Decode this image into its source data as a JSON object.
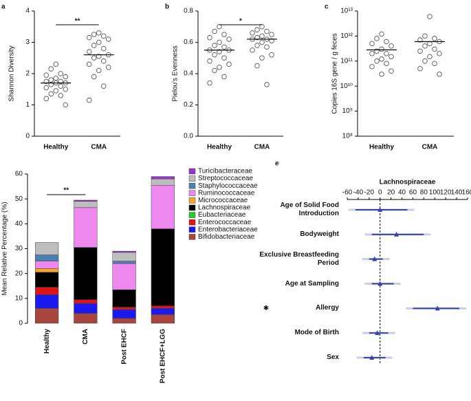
{
  "chart_data": [
    {
      "type": "strip",
      "panel": "a",
      "ylabel": "Shannon Diversity",
      "categories": [
        "Healthy",
        "CMA"
      ],
      "series": [
        {
          "values": [
            2.3,
            2.15,
            2.0,
            1.95,
            1.9,
            1.85,
            1.8,
            1.75,
            1.75,
            1.7,
            1.7,
            1.65,
            1.6,
            1.55,
            1.5,
            1.45,
            1.35,
            1.3,
            1.2,
            1.0
          ]
        },
        {
          "values": [
            3.3,
            3.25,
            3.2,
            3.15,
            3.1,
            3.0,
            2.9,
            2.8,
            2.7,
            2.6,
            2.55,
            2.5,
            2.4,
            2.3,
            2.2,
            2.1,
            1.9,
            1.6,
            1.15
          ]
        }
      ],
      "medians": [
        1.7,
        2.6
      ],
      "annotation": "**",
      "ylim": [
        0,
        4
      ],
      "yticks": [
        0,
        1,
        2,
        3,
        4
      ]
    },
    {
      "type": "strip",
      "panel": "b",
      "ylabel": "Pielou's Evenness",
      "categories": [
        "Healthy",
        "CMA"
      ],
      "series": [
        {
          "values": [
            0.7,
            0.67,
            0.65,
            0.63,
            0.62,
            0.6,
            0.58,
            0.57,
            0.55,
            0.55,
            0.54,
            0.52,
            0.5,
            0.48,
            0.46,
            0.44,
            0.42,
            0.38,
            0.34
          ]
        },
        {
          "values": [
            0.7,
            0.68,
            0.67,
            0.66,
            0.65,
            0.64,
            0.63,
            0.62,
            0.62,
            0.61,
            0.6,
            0.58,
            0.57,
            0.55,
            0.52,
            0.5,
            0.45,
            0.33
          ]
        }
      ],
      "medians": [
        0.55,
        0.62
      ],
      "annotation": "*",
      "ylim": [
        0,
        0.8
      ],
      "yticks": [
        {
          "value": 0,
          "label": "0.0"
        },
        0.2,
        0.4,
        0.6,
        0.8
      ]
    },
    {
      "type": "strip",
      "panel": "c",
      "ylabel": "Copies 16S gene / g feces",
      "categories": [
        "Healthy",
        "CMA"
      ],
      "log_scale": true,
      "series": [
        {
          "values": [
            1200000000000.0,
            800000000000.0,
            600000000000.0,
            500000000000.0,
            400000000000.0,
            300000000000.0,
            250000000000.0,
            200000000000.0,
            200000000000.0,
            150000000000.0,
            120000000000.0,
            100000000000.0,
            80000000000.0,
            60000000000.0,
            40000000000.0,
            30000000000.0
          ]
        },
        {
          "values": [
            6000000000000.0,
            1000000000000.0,
            800000000000.0,
            700000000000.0,
            600000000000.0,
            500000000000.0,
            400000000000.0,
            300000000000.0,
            250000000000.0,
            200000000000.0,
            150000000000.0,
            100000000000.0,
            80000000000.0,
            50000000000.0,
            30000000000.0
          ]
        }
      ],
      "medians": [
        280000000000.0,
        600000000000.0
      ],
      "ylim": [
        100000000.0,
        10000000000000.0
      ],
      "yticks": [
        {
          "value": 100000000.0,
          "label": "10⁸"
        },
        {
          "value": 1000000000.0,
          "label": "10⁹"
        },
        {
          "value": 10000000000.0,
          "label": "10¹⁰"
        },
        {
          "value": 100000000000.0,
          "label": "10¹¹"
        },
        {
          "value": 1000000000000.0,
          "label": "10¹²"
        },
        {
          "value": 10000000000000.0,
          "label": "10¹³"
        }
      ]
    },
    {
      "type": "bar",
      "panel": "d",
      "stacked": true,
      "ylabel": "Mean Relative Percentage (%)",
      "annotation": "**",
      "categories": [
        "Healthy",
        "CMA",
        "Post EHCF",
        "Post EHCF+LGG"
      ],
      "series": [
        {
          "name": "Bifidobacteriaceae",
          "color": "#a8453c",
          "values": [
            6,
            4,
            2,
            3.5
          ]
        },
        {
          "name": "Enterobacteriaceae",
          "color": "#1a1aee",
          "values": [
            5.5,
            4,
            3.5,
            2.5
          ]
        },
        {
          "name": "Enterococcaceae",
          "color": "#e01414",
          "values": [
            3,
            1.5,
            1,
            1
          ]
        },
        {
          "name": "Eubacteriaceae",
          "color": "#22cc22",
          "values": [
            0,
            0,
            0,
            0
          ]
        },
        {
          "name": "Lachnospiraceae",
          "color": "#000000",
          "values": [
            6,
            21,
            7,
            31
          ]
        },
        {
          "name": "Micrococcaceae",
          "color": "#f5a623",
          "values": [
            1.5,
            0,
            0,
            0
          ]
        },
        {
          "name": "Ruminococcaceae",
          "color": "#ee88ee",
          "values": [
            3,
            16,
            10.5,
            17.5
          ]
        },
        {
          "name": "Staphylococcaceae",
          "color": "#4a80b0",
          "values": [
            2.5,
            0,
            1,
            0
          ]
        },
        {
          "name": "Streptococcaceae",
          "color": "#bdbdbd",
          "values": [
            5,
            2.5,
            3.5,
            2.5
          ]
        },
        {
          "name": "Turicibacteraceae",
          "color": "#9933cc",
          "values": [
            0,
            0.5,
            0.5,
            1
          ]
        }
      ],
      "ylim": [
        0,
        60
      ],
      "yticks": [
        0,
        10,
        20,
        30,
        40,
        50,
        60
      ]
    },
    {
      "type": "forest",
      "panel": "e",
      "title": "Lachnospiraceae",
      "categories": [
        "Age of Solid Food Introduction",
        "Bodyweight",
        "Exclusive Breastfeeding Period",
        "Age at Sampling",
        "Allergy",
        "Mode of Birth",
        "Sex"
      ],
      "markers": [
        null,
        null,
        null,
        null,
        "✱",
        null,
        null
      ],
      "values": [
        0,
        30,
        -10,
        0,
        105,
        -5,
        -15
      ],
      "ci_low": [
        -45,
        -15,
        -20,
        -15,
        60,
        -20,
        -30
      ],
      "ci_high": [
        50,
        80,
        5,
        25,
        145,
        15,
        10
      ],
      "color": "#3344aa",
      "xlim": [
        -60,
        160
      ],
      "xticks": [
        -60,
        -40,
        -20,
        0,
        20,
        40,
        60,
        80,
        100,
        120,
        140,
        160
      ]
    }
  ]
}
